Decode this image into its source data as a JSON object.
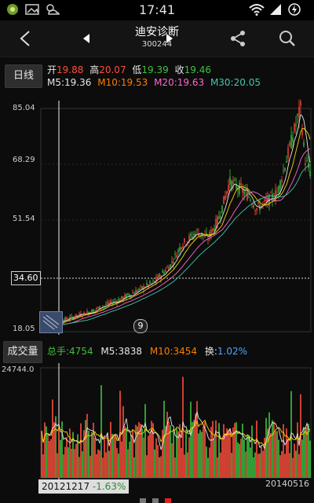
{
  "status_bar": {
    "time": "17:41"
  },
  "header": {
    "stock_name": "迪安诊断",
    "stock_code": "300244"
  },
  "info": {
    "period_button": "日线",
    "open_label": "开",
    "open_value": "19.88",
    "high_label": "高",
    "high_value": "20.07",
    "low_label": "低",
    "low_value": "19.39",
    "close_label": "收",
    "close_value": "19.46",
    "ma5_label": "M5:",
    "ma5_value": "19.36",
    "ma10_label": "M10:",
    "ma10_value": "19.53",
    "ma20_label": "M20:",
    "ma20_value": "19.63",
    "ma30_label": "M30:",
    "ma30_value": "20.05"
  },
  "price_chart": {
    "y_ticks": [
      "85.04",
      "68.29",
      "51.54",
      "34.60",
      "18.05"
    ],
    "crosshair_price": "34.60",
    "badge": "9"
  },
  "volume": {
    "button": "成交量",
    "total_label": "总手:",
    "total_value": "4754",
    "m5_label": "M5:",
    "m5_value": "3838",
    "m10_label": "M10:",
    "m10_value": "3454",
    "turnover_label": "换:",
    "turnover_value": "1.02%",
    "y_max": "24744.0"
  },
  "dates": {
    "start": "20121217",
    "start_change": "-1.63%",
    "end": "20140516"
  },
  "colors": {
    "up": "#ff4d3b",
    "down": "#40c040",
    "ma5": "#e6e6e6",
    "ma10": "#ffd200",
    "ma20": "#ff66cc",
    "ma30": "#3fc8a8"
  }
}
